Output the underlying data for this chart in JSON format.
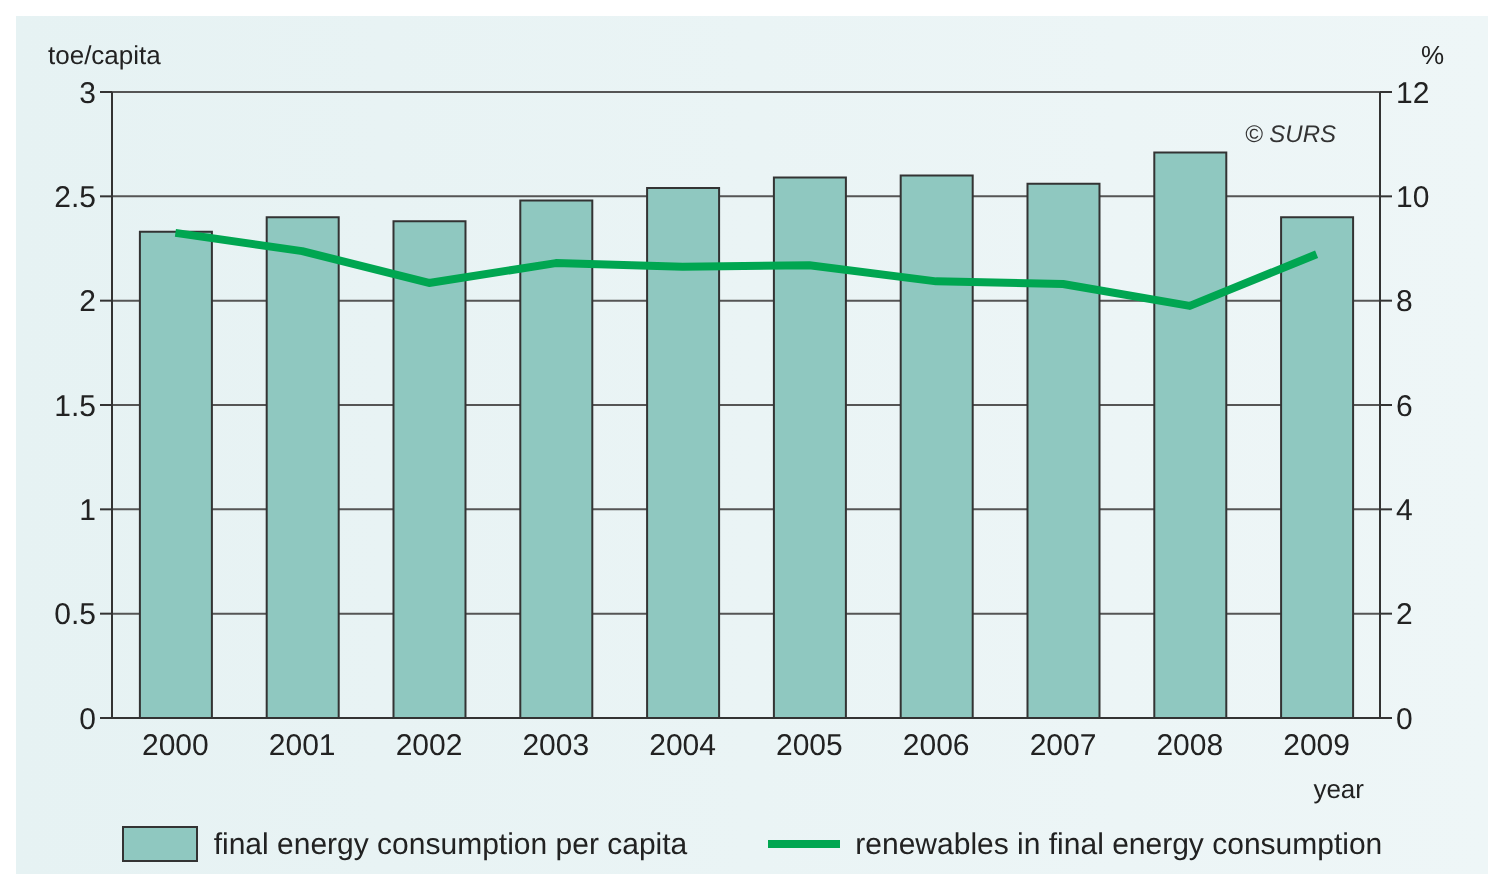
{
  "chart_data": {
    "type": "bar",
    "ylabel": "toe/capita",
    "y2label": "%",
    "xlabel": "year",
    "annotations": [
      "© SURS"
    ],
    "categories": [
      "2000",
      "2001",
      "2002",
      "2003",
      "2004",
      "2005",
      "2006",
      "2007",
      "2008",
      "2009"
    ],
    "series": [
      {
        "name": "final energy consumption per capita",
        "color": "#8fc8c0",
        "values": [
          2.33,
          2.4,
          2.38,
          2.48,
          2.54,
          2.59,
          2.6,
          2.56,
          2.71,
          2.4
        ]
      },
      {
        "name": "renewables in final energy consumption",
        "type": "line",
        "axis": "y2",
        "color": "#00a651",
        "values": [
          9.3,
          8.95,
          8.34,
          8.72,
          8.65,
          8.68,
          8.37,
          8.32,
          7.9,
          8.89
        ]
      }
    ],
    "ylim": [
      0,
      3
    ],
    "yticks": [
      0,
      0.5,
      1,
      1.5,
      2,
      2.5,
      3
    ],
    "y2lim": [
      0,
      12
    ],
    "y2ticks": [
      0,
      2,
      4,
      6,
      8,
      10,
      12
    ],
    "grid": "y",
    "legend": "bottom",
    "marker": "none"
  }
}
